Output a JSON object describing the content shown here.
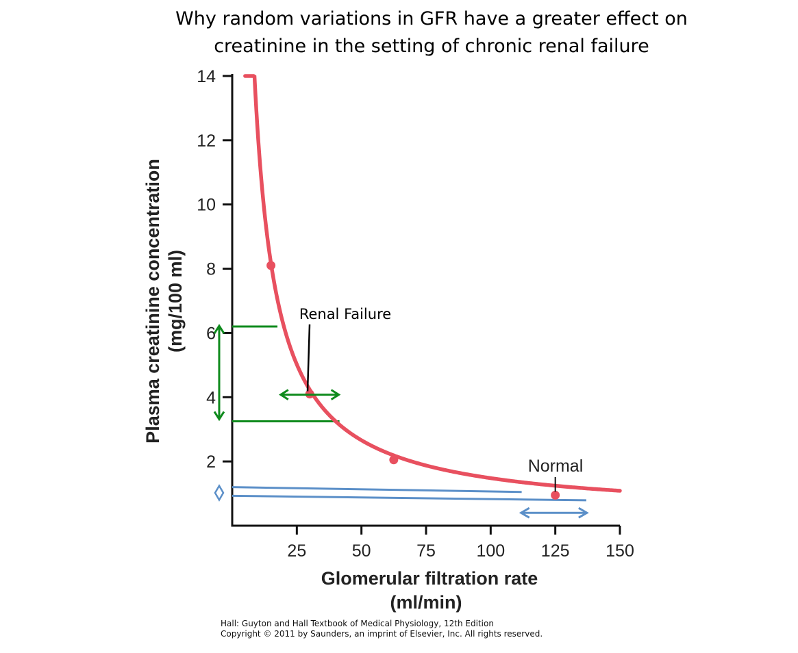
{
  "chart_data": {
    "type": "line",
    "title_lines": [
      "Why random variations in GFR have a greater effect on",
      "creatinine in the setting of chronic renal failure"
    ],
    "xlabel_lines": [
      "Glomerular filtration rate",
      "(ml/min)"
    ],
    "ylabel_lines": [
      "Plasma creatinine concentration",
      "(mg/100 ml)"
    ],
    "xlim": [
      0,
      150
    ],
    "ylim": [
      0,
      14
    ],
    "x_ticks": [
      25,
      50,
      75,
      100,
      125,
      150
    ],
    "y_ticks": [
      2,
      4,
      6,
      8,
      10,
      12,
      14
    ],
    "grid": false,
    "legend": "none",
    "series": [
      {
        "name": "Plasma creatinine vs GFR",
        "color": "#e8505f",
        "curve_constant": 118,
        "curve_offset": 0.3,
        "x_range": [
          5,
          150
        ]
      }
    ],
    "marked_points": [
      {
        "x": 15,
        "y": 8.1
      },
      {
        "x": 30,
        "y": 4.1
      },
      {
        "x": 62.5,
        "y": 2.05
      },
      {
        "x": 125,
        "y": 0.95
      }
    ],
    "annotations": {
      "renal_failure": {
        "label": "Renal Failure",
        "point": {
          "x": 30,
          "y": 4.1
        },
        "color": "#0e8a1c",
        "gfr_range": [
          19,
          40
        ],
        "creatinine_range": [
          3.25,
          6.2
        ]
      },
      "normal": {
        "label": "Normal",
        "point": {
          "x": 125,
          "y": 0.95
        },
        "color": "#5b8fc8",
        "gfr_range": [
          112,
          137
        ],
        "creatinine_range": [
          0.93,
          1.2
        ]
      }
    }
  },
  "source": {
    "line1": "Hall: Guyton and Hall Textbook of Medical Physiology, 12th Edition",
    "line2": "Copyright © 2011 by Saunders, an imprint of Elsevier, Inc. All rights reserved."
  }
}
